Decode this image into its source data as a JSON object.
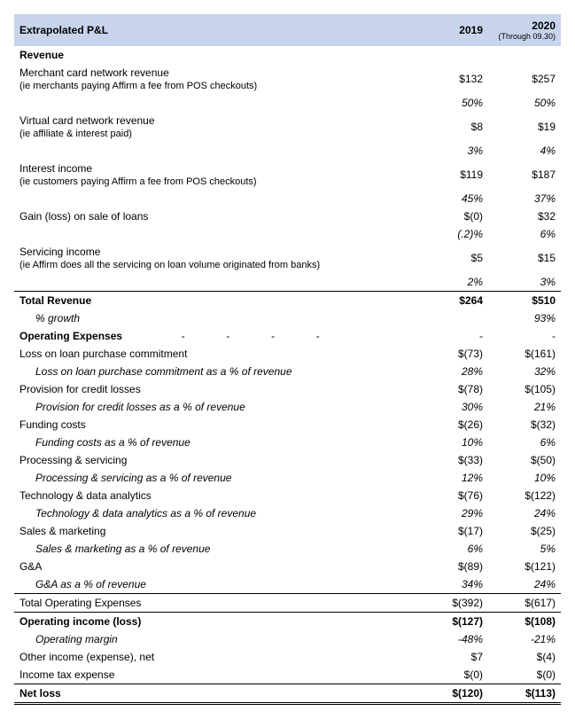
{
  "header": {
    "title": "Extrapolated P&L",
    "col2019": "2019",
    "col2020": "2020",
    "col2020_sub": "(Through 09.30)"
  },
  "revenue": {
    "title": "Revenue",
    "merchant": {
      "label": "Merchant card network revenue",
      "sub": "(ie merchants paying Affirm a fee from POS checkouts)",
      "v2019": "$132",
      "v2020": "$257",
      "p2019": "50%",
      "p2020": "50%"
    },
    "virtual": {
      "label": "Virtual card network revenue",
      "sub": "(ie affiliate & interest paid)",
      "v2019": "$8",
      "v2020": "$19",
      "p2019": "3%",
      "p2020": "4%"
    },
    "interest": {
      "label": "Interest income",
      "sub": "(ie customers paying Affirm a fee from POS checkouts)",
      "v2019": "$119",
      "v2020": "$187",
      "p2019": "45%",
      "p2020": "37%"
    },
    "gain": {
      "label": "Gain (loss) on sale of loans",
      "v2019": "$(0)",
      "v2020": "$32",
      "p2019": "(.2)%",
      "p2020": "6%"
    },
    "servicing": {
      "label": "Servicing income",
      "sub": "(ie Affirm does all the servicing on loan volume originated from banks)",
      "v2019": "$5",
      "v2020": "$15",
      "p2019": "2%",
      "p2020": "3%"
    },
    "total": {
      "label": "Total Revenue",
      "v2019": "$264",
      "v2020": "$510",
      "growth_label": "% growth",
      "g2020": "93%"
    }
  },
  "opex": {
    "title": "Operating Expenses",
    "dash": "-",
    "loss_commit": {
      "label": "Loss on loan purchase commitment",
      "v2019": "$(73)",
      "v2020": "$(161)",
      "sub": "Loss on loan purchase commitment as a % of revenue",
      "p2019": "28%",
      "p2020": "32%"
    },
    "pcl": {
      "label": "Provision for credit losses",
      "v2019": "$(78)",
      "v2020": "$(105)",
      "sub": "Provision for credit losses as a % of revenue",
      "p2019": "30%",
      "p2020": "21%"
    },
    "funding": {
      "label": "Funding costs",
      "v2019": "$(26)",
      "v2020": "$(32)",
      "sub": "Funding costs as a % of revenue",
      "p2019": "10%",
      "p2020": "6%"
    },
    "processing": {
      "label": "Processing & servicing",
      "v2019": "$(33)",
      "v2020": "$(50)",
      "sub": "Processing & servicing as a % of revenue",
      "p2019": "12%",
      "p2020": "10%"
    },
    "tech": {
      "label": "Technology & data analytics",
      "v2019": "$(76)",
      "v2020": "$(122)",
      "sub": "Technology & data analytics as a % of revenue",
      "p2019": "29%",
      "p2020": "24%"
    },
    "sales": {
      "label": "Sales & marketing",
      "v2019": "$(17)",
      "v2020": "$(25)",
      "sub": "Sales & marketing as a % of revenue",
      "p2019": "6%",
      "p2020": "5%"
    },
    "ga": {
      "label": "G&A",
      "v2019": "$(89)",
      "v2020": "$(121)",
      "sub": "G&A as a % of revenue",
      "p2019": "34%",
      "p2020": "24%"
    },
    "total": {
      "label": "Total Operating Expenses",
      "v2019": "$(392)",
      "v2020": "$(617)"
    }
  },
  "opinc": {
    "label": "Operating income (loss)",
    "v2019": "$(127)",
    "v2020": "$(108)",
    "margin_label": "Operating margin",
    "m2019": "-48%",
    "m2020": "-21%"
  },
  "other": {
    "label": "Other income (expense), net",
    "v2019": "$7",
    "v2020": "$(4)"
  },
  "tax": {
    "label": "Income tax expense",
    "v2019": "$(0)",
    "v2020": "$(0)"
  },
  "netloss": {
    "label": "Net loss",
    "v2019": "$(120)",
    "v2020": "$(113)"
  }
}
